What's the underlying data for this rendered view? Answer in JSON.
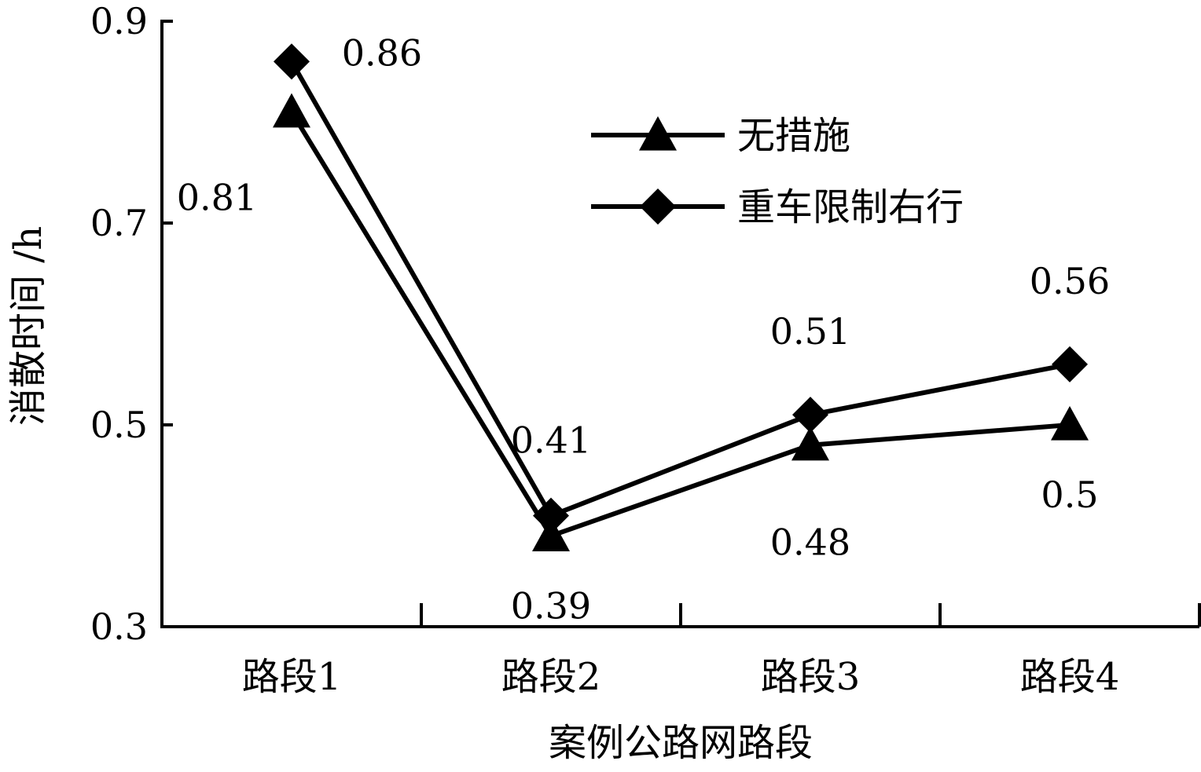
{
  "chart_data": {
    "type": "line",
    "title": "",
    "xlabel": "案例公路网路段",
    "ylabel": "消散时间 /h",
    "categories": [
      "路段1",
      "路段2",
      "路段3",
      "路段4"
    ],
    "ylim": [
      0.3,
      0.9
    ],
    "yticks": [
      "0.3",
      "0.5",
      "0.7",
      "0.9"
    ],
    "grid": false,
    "legend_position": "top-right",
    "series": [
      {
        "name": "无措施",
        "marker": "triangle",
        "color": "#000000",
        "values": [
          0.81,
          0.39,
          0.48,
          0.5
        ],
        "labels": [
          "0.81",
          "0.39",
          "0.48",
          "0.5"
        ]
      },
      {
        "name": "重车限制右行",
        "marker": "diamond",
        "color": "#000000",
        "values": [
          0.86,
          0.41,
          0.51,
          0.56
        ],
        "labels": [
          "0.86",
          "0.41",
          "0.51",
          "0.56"
        ]
      }
    ]
  }
}
